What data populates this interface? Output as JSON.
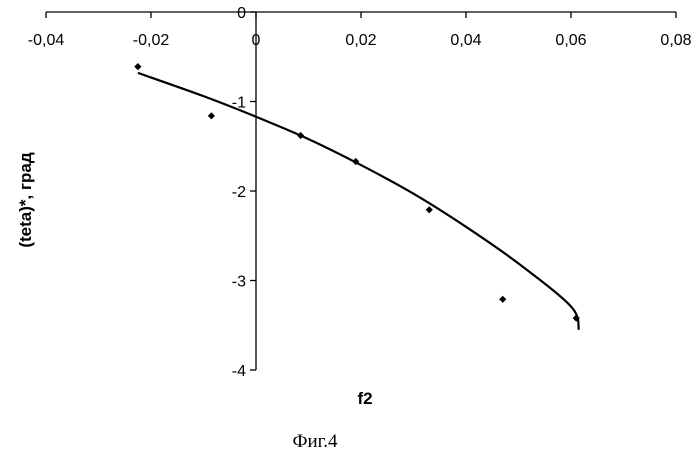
{
  "chart_data": {
    "type": "scatter",
    "xlabel": "f2",
    "ylabel": "(teta)*, град",
    "caption": "Фиг.4",
    "xlim": [
      -0.04,
      0.08
    ],
    "ylim": [
      -4,
      0
    ],
    "x_ticks": [
      -0.04,
      -0.02,
      0,
      0.02,
      0.04,
      0.06,
      0.08
    ],
    "x_tick_labels": [
      "-0,04",
      "-0,02",
      "0",
      "0,02",
      "0,04",
      "0,06",
      "0,08"
    ],
    "y_ticks": [
      0,
      -1,
      -2,
      -3,
      -4
    ],
    "y_tick_labels": [
      "0",
      "-1",
      "-2",
      "-3",
      "-4"
    ],
    "grid": false,
    "legend": "none",
    "series": [
      {
        "kind": "points",
        "x": [
          -0.0225,
          -0.0085,
          0.0085,
          0.019,
          0.033,
          0.047,
          0.061
        ],
        "y": [
          -0.61,
          -1.16,
          -1.38,
          -1.67,
          -2.21,
          -3.21,
          -3.42
        ]
      },
      {
        "kind": "trendline",
        "x": [
          -0.0225,
          -0.01,
          0,
          0.01,
          0.02,
          0.03,
          0.04,
          0.05,
          0.06,
          0.0615
        ],
        "y": [
          -0.68,
          -0.94,
          -1.17,
          -1.42,
          -1.71,
          -2.03,
          -2.4,
          -2.81,
          -3.29,
          -3.55
        ]
      }
    ]
  }
}
